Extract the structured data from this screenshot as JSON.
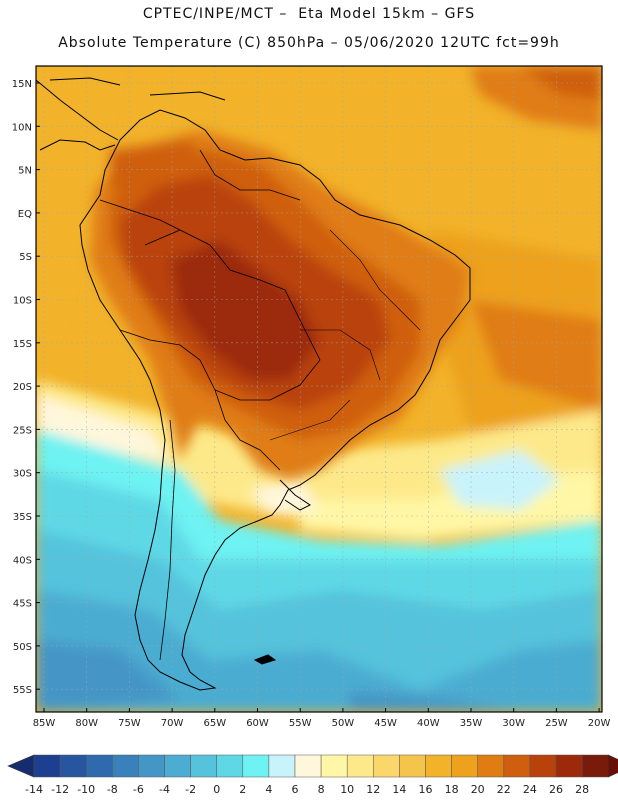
{
  "header": {
    "line1": "CPTEC/INPE/MCT –  Eta Model 15km – GFS",
    "line2": "Absolute Temperature (C) 850hPa – 05/06/2020 12UTC fct=99h"
  },
  "lat_labels": [
    "15N",
    "10N",
    "5N",
    "EQ",
    "5S",
    "10S",
    "15S",
    "20S",
    "25S",
    "30S",
    "35S",
    "40S",
    "45S",
    "50S",
    "55S"
  ],
  "lon_labels": [
    "85W",
    "80W",
    "75W",
    "70W",
    "65W",
    "60W",
    "55W",
    "50W",
    "45W",
    "40W",
    "35W",
    "30W",
    "25W",
    "20W"
  ],
  "colorbar": {
    "labels": [
      "-14",
      "-12",
      "-10",
      "-8",
      "-6",
      "-4",
      "-2",
      "0",
      "2",
      "4",
      "6",
      "8",
      "10",
      "12",
      "14",
      "16",
      "18",
      "20",
      "22",
      "24",
      "26",
      "28"
    ],
    "colors": [
      "#1d3f8f",
      "#2755a0",
      "#2f6aae",
      "#3a80bb",
      "#4496c6",
      "#4cacd1",
      "#55c3dc",
      "#5fd8e6",
      "#6ef2f2",
      "#c9f3fb",
      "#fff7dc",
      "#fff7a6",
      "#fde98a",
      "#fbd66a",
      "#f5c44a",
      "#f2b22a",
      "#eda11c",
      "#e07d12",
      "#cf5e0e",
      "#b9420c",
      "#9c2a0a",
      "#7a1a0a"
    ],
    "left_arrow_color": "#152d6e",
    "right_arrow_color": "#6a0e08"
  },
  "colors": {
    "ocean_warm": "#f2b22a",
    "continent_hot": "#b4480f",
    "south_cold": "#4cacd1"
  }
}
